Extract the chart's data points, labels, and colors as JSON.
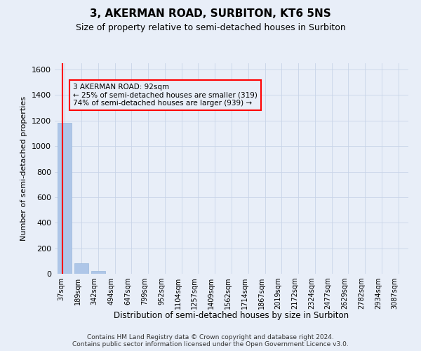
{
  "title": "3, AKERMAN ROAD, SURBITON, KT6 5NS",
  "subtitle": "Size of property relative to semi-detached houses in Surbiton",
  "xlabel": "Distribution of semi-detached houses by size in Surbiton",
  "ylabel": "Number of semi-detached properties",
  "annotation_text": "3 AKERMAN ROAD: 92sqm\n← 25% of semi-detached houses are smaller (319)\n74% of semi-detached houses are larger (939) →",
  "bin_labels": [
    "37sqm",
    "189sqm",
    "342sqm",
    "494sqm",
    "647sqm",
    "799sqm",
    "952sqm",
    "1104sqm",
    "1257sqm",
    "1409sqm",
    "1562sqm",
    "1714sqm",
    "1867sqm",
    "2019sqm",
    "2172sqm",
    "2324sqm",
    "2477sqm",
    "2629sqm",
    "2782sqm",
    "2934sqm",
    "3087sqm"
  ],
  "bin_values": [
    1180,
    85,
    20,
    0,
    0,
    0,
    0,
    0,
    0,
    0,
    0,
    0,
    0,
    0,
    0,
    0,
    0,
    0,
    0,
    0,
    0
  ],
  "bar_color": "#aec6e8",
  "bar_edge_color": "#9ab8dc",
  "vline_color": "red",
  "vline_x": -0.135,
  "ylim": [
    0,
    1650
  ],
  "yticks": [
    0,
    200,
    400,
    600,
    800,
    1000,
    1200,
    1400,
    1600
  ],
  "grid_color": "#c8d4e8",
  "bg_color": "#e8eef8",
  "title_fontsize": 11,
  "subtitle_fontsize": 9,
  "footer_line1": "Contains HM Land Registry data © Crown copyright and database right 2024.",
  "footer_line2": "Contains public sector information licensed under the Open Government Licence v3.0."
}
